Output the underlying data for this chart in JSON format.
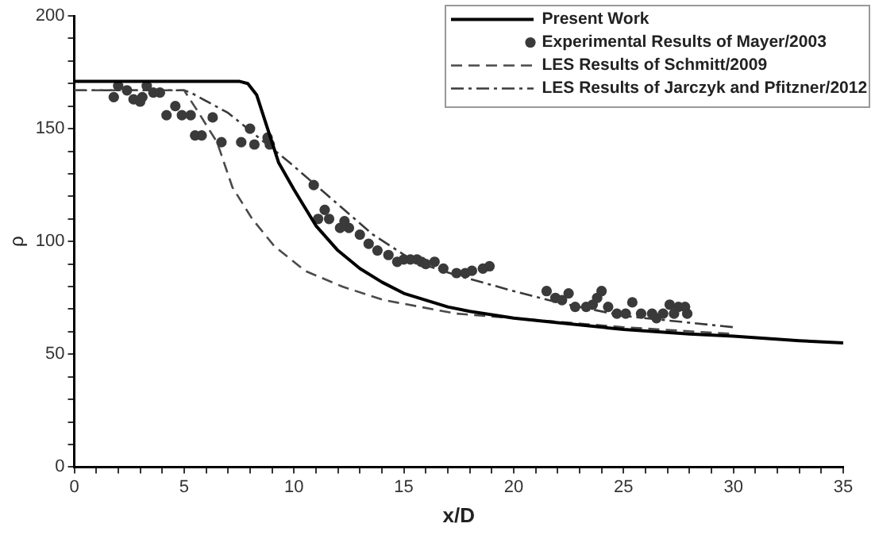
{
  "chart_data": {
    "type": "line",
    "xlabel": "x/D",
    "ylabel": "ρ",
    "xlim": [
      0,
      35
    ],
    "ylim": [
      0,
      200
    ],
    "xticks": [
      0,
      {
        "value": 1,
        "label": null
      },
      {
        "value": 2,
        "label": null
      },
      {
        "value": 3,
        "label": null
      },
      {
        "value": 4,
        "label": null
      },
      5,
      {
        "value": 6,
        "label": null
      },
      {
        "value": 7,
        "label": null
      },
      {
        "value": 8,
        "label": null
      },
      {
        "value": 9,
        "label": null
      },
      10,
      {
        "value": 11,
        "label": null
      },
      {
        "value": 12,
        "label": null
      },
      {
        "value": 13,
        "label": null
      },
      {
        "value": 14,
        "label": null
      },
      15,
      {
        "value": 16,
        "label": null
      },
      {
        "value": 17,
        "label": null
      },
      {
        "value": 18,
        "label": null
      },
      {
        "value": 19,
        "label": null
      },
      20,
      {
        "value": 21,
        "label": null
      },
      {
        "value": 22,
        "label": null
      },
      {
        "value": 23,
        "label": null
      },
      {
        "value": 24,
        "label": null
      },
      25,
      {
        "value": 26,
        "label": null
      },
      {
        "value": 27,
        "label": null
      },
      {
        "value": 28,
        "label": null
      },
      {
        "value": 29,
        "label": null
      },
      30,
      {
        "value": 31,
        "label": null
      },
      {
        "value": 32,
        "label": null
      },
      {
        "value": 33,
        "label": null
      },
      {
        "value": 34,
        "label": null
      },
      35
    ],
    "yticks": [
      0,
      {
        "value": 10,
        "label": null
      },
      {
        "value": 20,
        "label": null
      },
      {
        "value": 30,
        "label": null
      },
      {
        "value": 40,
        "label": null
      },
      50,
      {
        "value": 60,
        "label": null
      },
      {
        "value": 70,
        "label": null
      },
      {
        "value": 80,
        "label": null
      },
      {
        "value": 90,
        "label": null
      },
      100,
      {
        "value": 110,
        "label": null
      },
      {
        "value": 120,
        "label": null
      },
      {
        "value": 130,
        "label": null
      },
      {
        "value": 140,
        "label": null
      },
      150,
      {
        "value": 160,
        "label": null
      },
      {
        "value": 170,
        "label": null
      },
      {
        "value": 180,
        "label": null
      },
      {
        "value": 190,
        "label": null
      },
      200
    ],
    "grid": false,
    "legend": "top right",
    "series": [
      {
        "name": "Present Work",
        "type": "line",
        "color": "#000000",
        "line_style": "solid",
        "marker": "none",
        "x": [
          0,
          7.5,
          7.9,
          8.3,
          8.8,
          9.3,
          10,
          11,
          12,
          13,
          14,
          15,
          16,
          17,
          18,
          20,
          22,
          25,
          28,
          30,
          33,
          35
        ],
        "values": [
          171,
          171,
          170,
          165,
          150,
          135,
          123,
          107,
          96,
          88,
          82,
          77,
          74,
          71,
          69,
          66,
          64,
          61,
          59,
          58,
          56,
          55
        ]
      },
      {
        "name": "Experimental Results of Mayer/2003",
        "type": "scatter",
        "color": "#3a3a3a",
        "marker": "circle",
        "x": [
          1.8,
          2.0,
          2.4,
          2.7,
          3.0,
          3.1,
          3.3,
          3.6,
          3.9,
          4.2,
          4.6,
          4.9,
          5.3,
          5.5,
          5.8,
          6.3,
          6.7,
          7.6,
          8.0,
          8.2,
          8.8,
          8.9,
          10.9,
          11.1,
          11.4,
          11.6,
          12.1,
          12.3,
          12.5,
          13.0,
          13.4,
          13.8,
          14.3,
          14.7,
          15.0,
          15.3,
          15.6,
          15.8,
          16.0,
          16.4,
          16.8,
          17.4,
          17.8,
          18.1,
          18.6,
          18.9,
          21.5,
          21.9,
          22.2,
          22.5,
          22.8,
          23.3,
          23.6,
          23.8,
          24.0,
          24.3,
          24.7,
          25.1,
          25.4,
          25.8,
          26.3,
          26.5,
          26.8,
          27.1,
          27.3,
          27.5,
          27.8,
          27.9
        ],
        "values": [
          164,
          169,
          167,
          163,
          162,
          164,
          169,
          166,
          166,
          156,
          160,
          156,
          156,
          147,
          147,
          155,
          144,
          144,
          150,
          143,
          146,
          143,
          125,
          110,
          114,
          110,
          106,
          109,
          106,
          103,
          99,
          96,
          94,
          91,
          92,
          92,
          92,
          91,
          90,
          91,
          88,
          86,
          86,
          87,
          88,
          89,
          78,
          75,
          74,
          77,
          71,
          71,
          72,
          75,
          78,
          71,
          68,
          68,
          73,
          68,
          68,
          66,
          68,
          72,
          68,
          71,
          71,
          68
        ]
      },
      {
        "name": "LES Results of Schmitt/2009",
        "type": "line",
        "color": "#4a4a4a",
        "line_style": "dashed",
        "marker": "none",
        "x": [
          0,
          5,
          5.6,
          6.5,
          7.2,
          8.1,
          9.1,
          10.5,
          12.2,
          14.1,
          17.4,
          20,
          25,
          30
        ],
        "values": [
          167,
          167,
          158,
          144,
          124,
          110,
          98,
          87,
          80,
          74,
          68,
          66,
          62,
          59
        ]
      },
      {
        "name": "LES Results of Jarczyk and Pfitzner/2012",
        "type": "line",
        "color": "#3a3a3a",
        "line_style": "dashdot",
        "marker": "none",
        "x": [
          0,
          5,
          5.3,
          7,
          8.4,
          9.8,
          11.7,
          13.6,
          15.5,
          17.4,
          20,
          22,
          25,
          30
        ],
        "values": [
          167,
          167,
          166,
          157,
          146,
          135,
          119,
          103,
          91,
          85,
          78,
          73,
          67,
          62
        ]
      }
    ]
  }
}
